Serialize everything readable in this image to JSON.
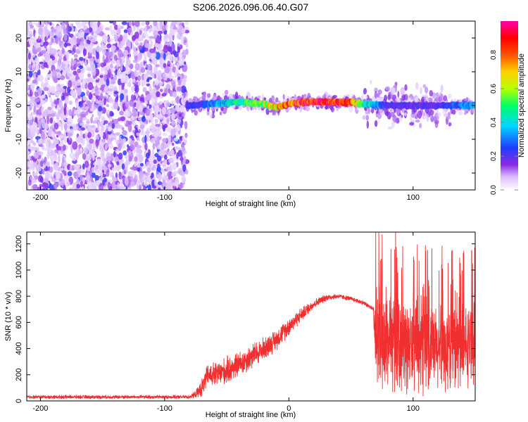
{
  "title": "S206.2026.096.06.40.G07",
  "chart_data": [
    {
      "type": "heatmap",
      "xlabel": "Height of straight line (km)",
      "ylabel": "Frequency (Hz)",
      "xlim": [
        -211,
        150
      ],
      "ylim": [
        -25,
        25
      ],
      "xticks": [
        -200,
        -100,
        0,
        100
      ],
      "yticks": [
        -20,
        -10,
        0,
        10,
        20
      ],
      "colorbar": {
        "label": "Normalized spectral amplitude",
        "range": [
          0,
          1
        ],
        "ticks": [
          "0.0",
          "0.2",
          "0.4",
          "0.6",
          "0.8"
        ],
        "colormap": [
          "#ffffff",
          "#d8b8ff",
          "#8a2be2",
          "#1e3cff",
          "#00d8ff",
          "#00ff66",
          "#b8ff00",
          "#ffd000",
          "#ff5000",
          "#ff0000",
          "#ff00aa"
        ]
      },
      "regions": [
        {
          "x": [
            -211,
            -82
          ],
          "description_level": "noise"
        },
        {
          "x": [
            -82,
            150
          ],
          "center_frequency_hz": 0
        }
      ],
      "ridge": {
        "x": [
          -82,
          -60,
          -40,
          -20,
          -10,
          0,
          10,
          30,
          50,
          60,
          80,
          100,
          120,
          150
        ],
        "freq": [
          0,
          0.5,
          1,
          0.5,
          -0.5,
          0.5,
          1,
          1,
          1,
          0.5,
          0,
          0,
          0,
          0
        ],
        "amplitude": [
          0.25,
          0.35,
          0.5,
          0.6,
          0.75,
          0.85,
          0.95,
          0.95,
          0.9,
          0.5,
          0.25,
          0.25,
          0.25,
          0.4
        ]
      }
    },
    {
      "type": "line",
      "xlabel": "Height of straight line (km)",
      "ylabel": "SNR (10 * v/v)",
      "xlim": [
        -211,
        150
      ],
      "ylim": [
        0,
        1290
      ],
      "xticks": [
        -200,
        -100,
        0,
        100
      ],
      "yticks": [
        0,
        200,
        400,
        600,
        800,
        1000,
        1200
      ],
      "color": "#f03030",
      "series": [
        {
          "x": [
            -211,
            -150,
            -100,
            -80,
            -75,
            -70,
            -65,
            -60,
            -50,
            -40,
            -30,
            -20,
            -10,
            0,
            10,
            20,
            30,
            40,
            50,
            60,
            65,
            68,
            70,
            80,
            90,
            100,
            110,
            120,
            130,
            140,
            150
          ],
          "y": [
            30,
            30,
            30,
            30,
            50,
            100,
            200,
            200,
            230,
            280,
            340,
            400,
            470,
            570,
            660,
            740,
            790,
            800,
            780,
            750,
            720,
            700,
            450,
            450,
            430,
            410,
            400,
            390,
            400,
            410,
            450
          ],
          "spread": [
            15,
            15,
            15,
            15,
            30,
            80,
            100,
            110,
            120,
            110,
            110,
            100,
            90,
            80,
            60,
            40,
            30,
            20,
            20,
            20,
            20,
            20,
            450,
            420,
            400,
            380,
            380,
            380,
            380,
            370,
            350
          ]
        }
      ]
    }
  ]
}
